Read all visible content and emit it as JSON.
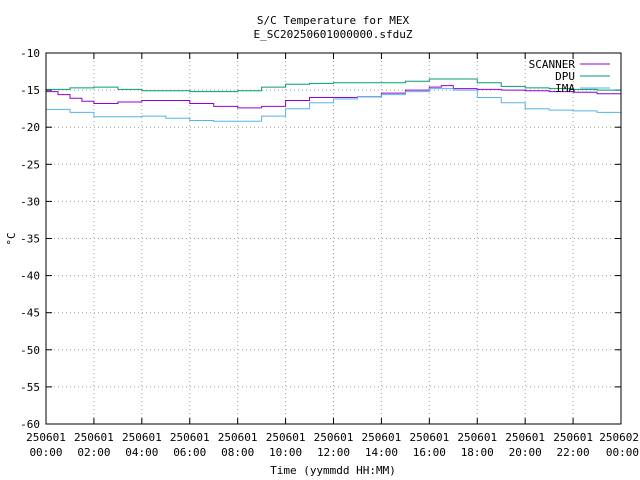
{
  "chart_data": {
    "type": "line",
    "title": "S/C Temperature for MEX",
    "subtitle": "E_SC20250601000000.sfduZ",
    "xlabel": "Time (yymmdd HH:MM)",
    "ylabel": "°C",
    "xlim": [
      0,
      24
    ],
    "ylim": [
      -60,
      -10
    ],
    "yticks": [
      -10,
      -15,
      -20,
      -25,
      -30,
      -35,
      -40,
      -45,
      -50,
      -55,
      -60
    ],
    "xticks": [
      {
        "hour": 0,
        "date": "250601",
        "time": "00:00"
      },
      {
        "hour": 2,
        "date": "250601",
        "time": "02:00"
      },
      {
        "hour": 4,
        "date": "250601",
        "time": "04:00"
      },
      {
        "hour": 6,
        "date": "250601",
        "time": "06:00"
      },
      {
        "hour": 8,
        "date": "250601",
        "time": "08:00"
      },
      {
        "hour": 10,
        "date": "250601",
        "time": "10:00"
      },
      {
        "hour": 12,
        "date": "250601",
        "time": "12:00"
      },
      {
        "hour": 14,
        "date": "250601",
        "time": "14:00"
      },
      {
        "hour": 16,
        "date": "250601",
        "time": "16:00"
      },
      {
        "hour": 18,
        "date": "250601",
        "time": "18:00"
      },
      {
        "hour": 20,
        "date": "250601",
        "time": "20:00"
      },
      {
        "hour": 22,
        "date": "250601",
        "time": "22:00"
      },
      {
        "hour": 24,
        "date": "250602",
        "time": "00:00"
      }
    ],
    "grid": true,
    "legend_position": "top-right",
    "series": [
      {
        "name": "SCANNER",
        "color": "#9400d3",
        "x": [
          0,
          0.5,
          1,
          1.5,
          2,
          3,
          4,
          5,
          6,
          7,
          8,
          9,
          10,
          11,
          12,
          13,
          14,
          15,
          16,
          16.5,
          17,
          18,
          19,
          20,
          21,
          22,
          23,
          24
        ],
        "y": [
          -15.2,
          -15.6,
          -16.1,
          -16.5,
          -16.8,
          -16.6,
          -16.4,
          -16.4,
          -16.8,
          -17.2,
          -17.4,
          -17.2,
          -16.4,
          -16.0,
          -16.0,
          -15.9,
          -15.4,
          -15.0,
          -14.6,
          -14.4,
          -14.8,
          -14.9,
          -15.0,
          -15.1,
          -15.2,
          -15.3,
          -15.5,
          -15.6
        ]
      },
      {
        "name": "DPU",
        "color": "#009e73",
        "x": [
          0,
          1,
          2,
          3,
          4,
          5,
          6,
          7,
          8,
          9,
          10,
          11,
          12,
          13,
          14,
          15,
          16,
          17,
          18,
          19,
          20,
          21,
          22,
          23,
          24
        ],
        "y": [
          -14.9,
          -14.7,
          -14.6,
          -14.9,
          -15.1,
          -15.1,
          -15.2,
          -15.2,
          -15.1,
          -14.6,
          -14.2,
          -14.1,
          -14.0,
          -14.0,
          -14.0,
          -13.8,
          -13.5,
          -13.5,
          -14.0,
          -14.5,
          -14.7,
          -14.8,
          -14.9,
          -15.0,
          -15.1
        ]
      },
      {
        "name": "IMA",
        "color": "#56b4e9",
        "x": [
          0,
          1,
          2,
          3,
          4,
          5,
          6,
          7,
          8,
          9,
          10,
          11,
          12,
          13,
          14,
          15,
          16,
          17,
          18,
          19,
          20,
          21,
          22,
          23,
          24
        ],
        "y": [
          -17.6,
          -18.0,
          -18.6,
          -18.6,
          -18.5,
          -18.8,
          -19.1,
          -19.2,
          -19.2,
          -18.5,
          -17.5,
          -16.7,
          -16.2,
          -15.9,
          -15.6,
          -15.2,
          -14.8,
          -15.0,
          -16.0,
          -16.7,
          -17.5,
          -17.7,
          -17.8,
          -18.0,
          -18.4
        ]
      }
    ]
  }
}
